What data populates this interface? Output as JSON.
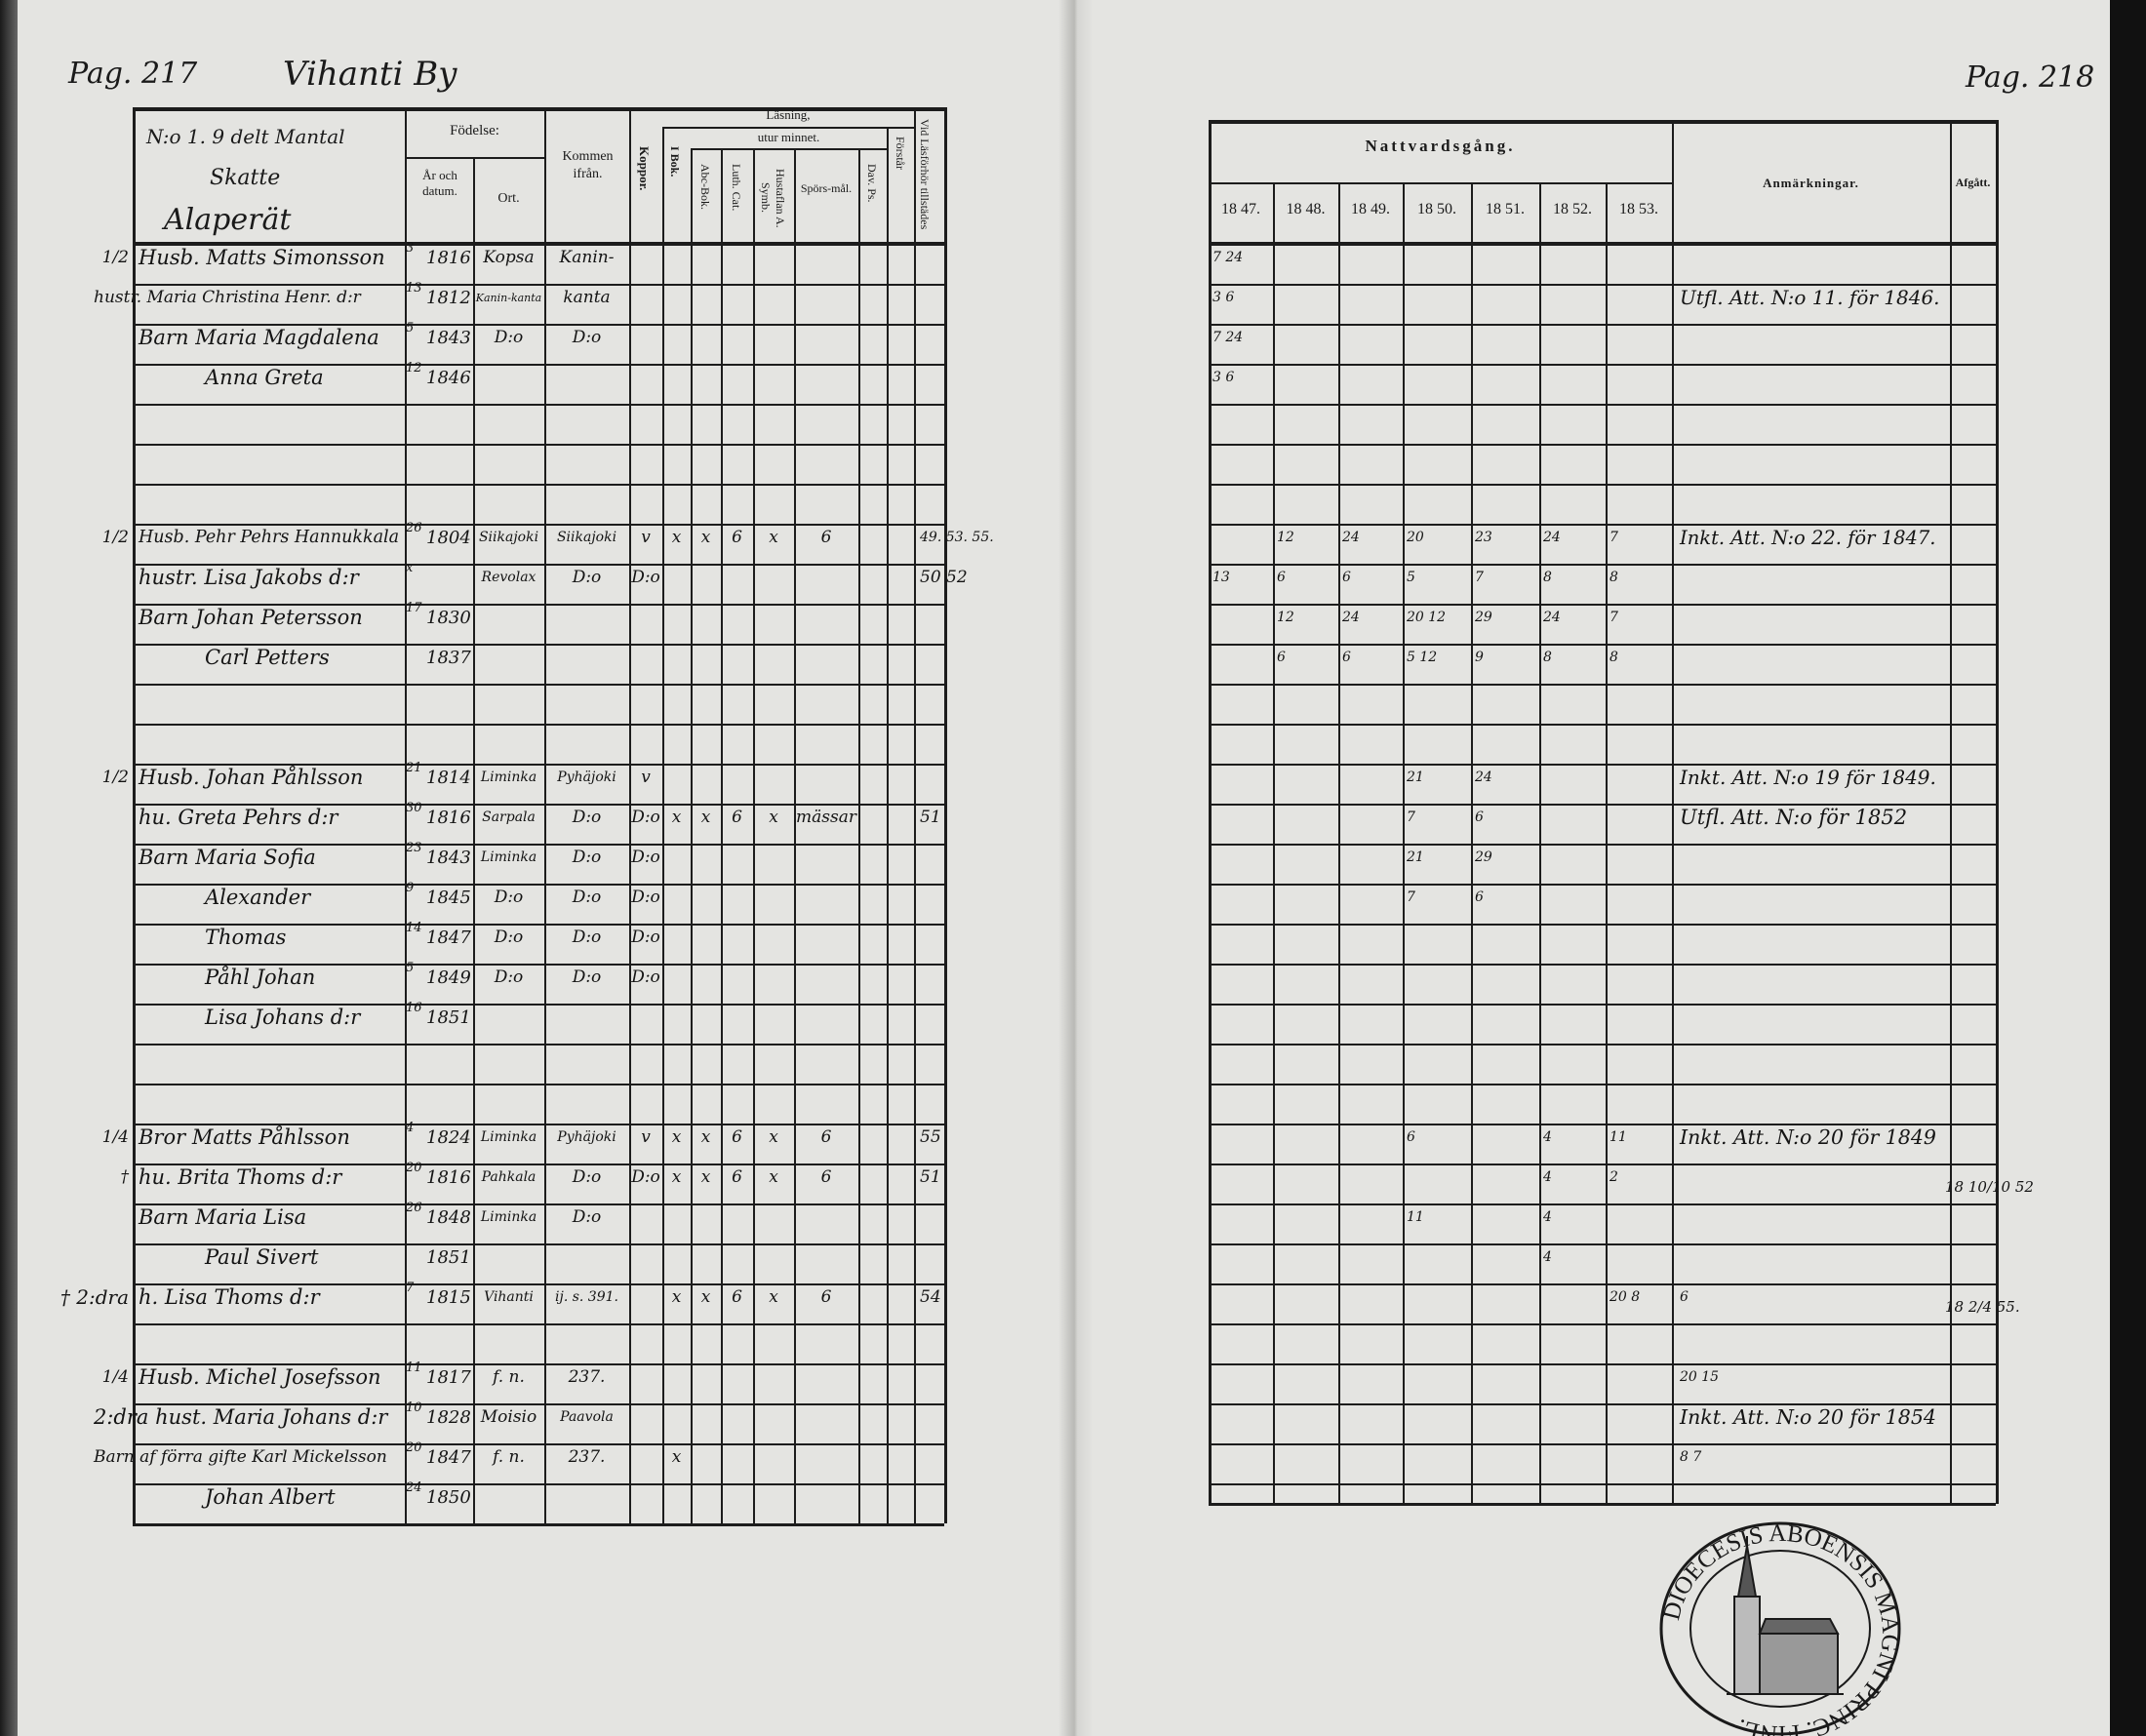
{
  "left_page": {
    "page_label": "Pag. 217",
    "village": "Vihanti By",
    "homestead": {
      "number": "N:o 1. 9 delt Mantal",
      "tax_class": "Skatte",
      "name": "Alaperät"
    },
    "headers": {
      "fodelse": "Födelse:",
      "ar_och_datum": "År och datum.",
      "ort": "Ort.",
      "kommen_ifran": "Kommen ifrån.",
      "koppor": "Koppor.",
      "lasning": "Läsning,",
      "utur_minnet": "utur minnet.",
      "i_bok": "I Bok.",
      "abc_bok": "Abc-Bok.",
      "luth_cat": "Luth. Cat.",
      "hustaflan": "Hustaflan A. Symb.",
      "sporsmal": "Spörs-mål.",
      "dav_ps": "Dav. Ps.",
      "forstar": "Förstår",
      "vid_lasforhor": "Vid Läsförhör tillstädes"
    },
    "rows": [
      {
        "mark": "1/2",
        "name": "Husb. Matts Simonsson",
        "day": "3",
        "year": "1816",
        "ort": "Kopsa",
        "kommen": "Kanin-"
      },
      {
        "name": "hustr. Maria Christina Henr. d:r",
        "day": "13",
        "year": "1812",
        "ort": "Kanin-kanta",
        "kommen": "kanta"
      },
      {
        "name": "Barn Maria Magdalena",
        "day": "5",
        "year": "1843",
        "ort": "D:o",
        "kommen": "D:o"
      },
      {
        "name": "Anna Greta",
        "day": "12",
        "year": "1846",
        "indent": true
      },
      {},
      {},
      {},
      {
        "mark": "1/2",
        "name": "Husb. Pehr Pehrs Hannukkala",
        "day": "26",
        "year": "1804",
        "ort": "Siikajoki",
        "kommen": "Siikajoki",
        "koppor": "v",
        "ibok": "x",
        "abc": "x",
        "luth": "6",
        "husl": "x",
        "spors": "6",
        "vid": "49.  53. 55."
      },
      {
        "name": "hustr. Lisa Jakobs d:r",
        "day": "x",
        "ort": "Revolax",
        "kommen": "D:o",
        "koppor": "D:o",
        "vid": "50  52"
      },
      {
        "name": "Barn Johan Petersson",
        "day": "17",
        "year": "1830"
      },
      {
        "name": "Carl Petters",
        "day": "",
        "year": "1837",
        "indent": true
      },
      {},
      {},
      {
        "mark": "1/2",
        "name": "Husb. Johan Påhlsson",
        "day": "21",
        "year": "1814",
        "ort": "Liminka",
        "kommen": "Pyhäjoki",
        "koppor": "v"
      },
      {
        "name": "hu. Greta Pehrs d:r",
        "day": "30",
        "year": "1816",
        "ort": "Sarpala",
        "kommen": "D:o",
        "koppor": "D:o",
        "ibok": "x",
        "abc": "x",
        "luth": "6",
        "husl": "x",
        "spors": "mässar",
        "vid": "51"
      },
      {
        "name": "Barn Maria Sofia",
        "day": "23",
        "year": "1843",
        "ort": "Liminka",
        "kommen": "D:o",
        "koppor": "D:o"
      },
      {
        "name": "Alexander",
        "day": "9",
        "year": "1845",
        "ort": "D:o",
        "kommen": "D:o",
        "koppor": "D:o",
        "indent": true
      },
      {
        "name": "Thomas",
        "day": "14",
        "year": "1847",
        "ort": "D:o",
        "kommen": "D:o",
        "koppor": "D:o",
        "indent": true
      },
      {
        "name": "Påhl Johan",
        "day": "5",
        "year": "1849",
        "ort": "D:o",
        "kommen": "D:o",
        "koppor": "D:o",
        "indent": true
      },
      {
        "name": "Lisa Johans d:r",
        "day": "16",
        "year": "1851",
        "indent": true
      },
      {},
      {},
      {
        "mark": "1/4",
        "name": "Bror Matts Påhlsson",
        "day": "4",
        "year": "1824",
        "ort": "Liminka",
        "kommen": "Pyhäjoki",
        "koppor": "v",
        "ibok": "x",
        "abc": "x",
        "luth": "6",
        "husl": "x",
        "spors": "6",
        "vid": "55"
      },
      {
        "mark": "†",
        "name": "hu. Brita Thoms d:r",
        "day": "20",
        "year": "1816",
        "ort": "Pahkala",
        "kommen": "D:o",
        "koppor": "D:o",
        "ibok": "x",
        "abc": "x",
        "luth": "6",
        "husl": "x",
        "spors": "6",
        "vid": "51"
      },
      {
        "name": "Barn Maria Lisa",
        "day": "26",
        "year": "1848",
        "ort": "Liminka",
        "kommen": "D:o"
      },
      {
        "name": "Paul Sivert",
        "day": "",
        "year": "1851",
        "indent": true
      },
      {
        "mark": "† 2:dra",
        "name": "h. Lisa Thoms d:r",
        "day": "7",
        "year": "1815",
        "ort": "Vihanti",
        "kommen": "ij. s. 391.",
        "ibok": "x",
        "abc": "x",
        "luth": "6",
        "husl": "x",
        "spors": "6",
        "vid": "54"
      },
      {},
      {
        "mark": "1/4",
        "name": "Husb. Michel Josefsson",
        "day": "11",
        "year": "1817",
        "ort": "f. n.",
        "kommen": "237."
      },
      {
        "name": "2:dra hust. Maria Johans d:r",
        "day": "10",
        "year": "1828",
        "ort": "Moisio",
        "kommen": "Paavola"
      },
      {
        "name": "Barn af förra gifte Karl Mickelsson",
        "day": "20",
        "year": "1847",
        "ort": "f. n.",
        "kommen": "237.",
        "ibok": "x"
      },
      {
        "name": "Johan Albert",
        "day": "24",
        "year": "1850",
        "indent": true
      }
    ]
  },
  "right_page": {
    "page_label": "Pag. 218",
    "headers": {
      "nattvardsgang": "Nattvardsgång.",
      "years": [
        "18 47.",
        "18 48.",
        "18 49.",
        "18 50.",
        "18 51.",
        "18 52.",
        "18 53."
      ],
      "anmarkningar": "Anmärkningar.",
      "afgatt": "Afgått."
    },
    "rows": [
      {
        "nv": [
          "7 24",
          "",
          "",
          "",
          "",
          "",
          ""
        ]
      },
      {
        "nv": [
          "3 6",
          "",
          "",
          "",
          "",
          "",
          ""
        ],
        "remark": "Utfl. Att. N:o 11. för 1846."
      },
      {
        "nv": [
          "7 24",
          "",
          "",
          "",
          "",
          "",
          ""
        ]
      },
      {
        "nv": [
          "3 6",
          "",
          "",
          "",
          "",
          "",
          ""
        ]
      },
      {},
      {},
      {},
      {
        "nv": [
          "",
          "12",
          "24",
          "20",
          "23",
          "24",
          "7"
        ],
        "remark": "Inkt. Att. N:o 22. för 1847."
      },
      {
        "nv": [
          "13",
          "6",
          "6",
          "5",
          "7",
          "8",
          "8"
        ]
      },
      {
        "nv": [
          "",
          "12",
          "24",
          "20 12",
          "29",
          "24",
          "7"
        ]
      },
      {
        "nv": [
          "",
          "6",
          "6",
          "5 12",
          "9",
          "8",
          "8"
        ]
      },
      {},
      {},
      {
        "nv": [
          "",
          "",
          "",
          "21",
          "24",
          "",
          ""
        ],
        "remark": "Inkt. Att. N:o 19 för 1849."
      },
      {
        "nv": [
          "",
          "",
          "",
          "7",
          "6",
          "",
          ""
        ],
        "remark": "Utfl. Att. N:o för 1852"
      },
      {
        "nv": [
          "",
          "",
          "",
          "21",
          "29",
          "",
          ""
        ]
      },
      {
        "nv": [
          "",
          "",
          "",
          "7",
          "6",
          "",
          ""
        ]
      },
      {},
      {},
      {},
      {},
      {},
      {
        "nv": [
          "",
          "",
          "",
          "6",
          "",
          "4",
          "11"
        ],
        "remark": "Inkt. Att. N:o 20 för 1849"
      },
      {
        "nv": [
          "",
          "",
          "",
          "",
          "",
          "4",
          "2"
        ],
        "afgatt": "18 10/10 52"
      },
      {
        "nv": [
          "",
          "",
          "",
          "11",
          "",
          "4",
          ""
        ]
      },
      {
        "nv": [
          "",
          "",
          "",
          "",
          "",
          "4",
          ""
        ]
      },
      {
        "nv": [
          "",
          "",
          "",
          "",
          "",
          "",
          "20 8"
        ],
        "remark": "6",
        "afgatt": "18 2/4 55."
      },
      {},
      {
        "remark": "20  15"
      },
      {
        "remark": "Inkt. Att. N:o 20 för 1854"
      },
      {
        "remark": "8  7"
      },
      {}
    ],
    "stamp": "DIOECESIS ABOENSIS MAGNI PRINC. FINL."
  },
  "colors": {
    "paper": "#e4e4e1",
    "ink": "#1a1a1a"
  }
}
